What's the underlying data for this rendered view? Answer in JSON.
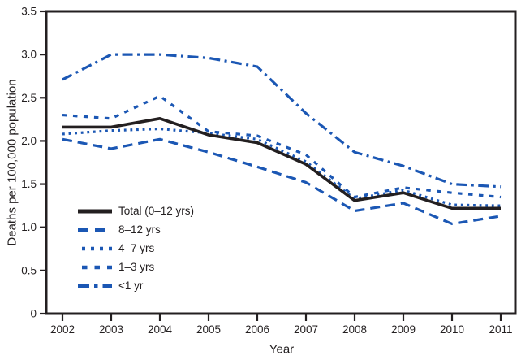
{
  "figure": {
    "background": "#ffffff",
    "text_color": "#231f20"
  },
  "chart_data": {
    "type": "line",
    "title": "",
    "xlabel": "Year",
    "ylabel": "Deaths per 100,000 population",
    "x": [
      "2002",
      "2003",
      "2004",
      "2005",
      "2006",
      "2007",
      "2008",
      "2009",
      "2010",
      "2011"
    ],
    "y_ticks": [
      "0",
      "0.5",
      "1.0",
      "1.5",
      "2.0",
      "2.5",
      "3.0",
      "3.5"
    ],
    "ylim": [
      0,
      3.5
    ],
    "grid": false,
    "legend_position": "inside-lower-left",
    "axis_color": "#231f20",
    "series": [
      {
        "name": "Total (0–12 yrs)",
        "color": "#231f20",
        "line_style": "solid",
        "values": [
          2.16,
          2.16,
          2.26,
          2.07,
          1.98,
          1.73,
          1.31,
          1.4,
          1.22,
          1.22
        ]
      },
      {
        "name": "8–12 yrs",
        "color": "#1b57b4",
        "line_style": "long-dash",
        "values": [
          2.02,
          1.91,
          2.02,
          1.87,
          1.7,
          1.52,
          1.19,
          1.28,
          1.04,
          1.13
        ]
      },
      {
        "name": "4–7 yrs",
        "color": "#1b57b4",
        "line_style": "dotted",
        "values": [
          2.08,
          2.12,
          2.14,
          2.09,
          2.02,
          1.76,
          1.33,
          1.43,
          1.26,
          1.25
        ]
      },
      {
        "name": "1–3 yrs",
        "color": "#1b57b4",
        "line_style": "square-dash",
        "values": [
          2.3,
          2.26,
          2.52,
          2.11,
          2.06,
          1.84,
          1.35,
          1.46,
          1.4,
          1.35
        ]
      },
      {
        "name": "<1 yr",
        "color": "#1b57b4",
        "line_style": "dash-dot",
        "values": [
          2.71,
          3.0,
          3.0,
          2.96,
          2.86,
          2.32,
          1.87,
          1.71,
          1.5,
          1.47
        ]
      }
    ]
  }
}
